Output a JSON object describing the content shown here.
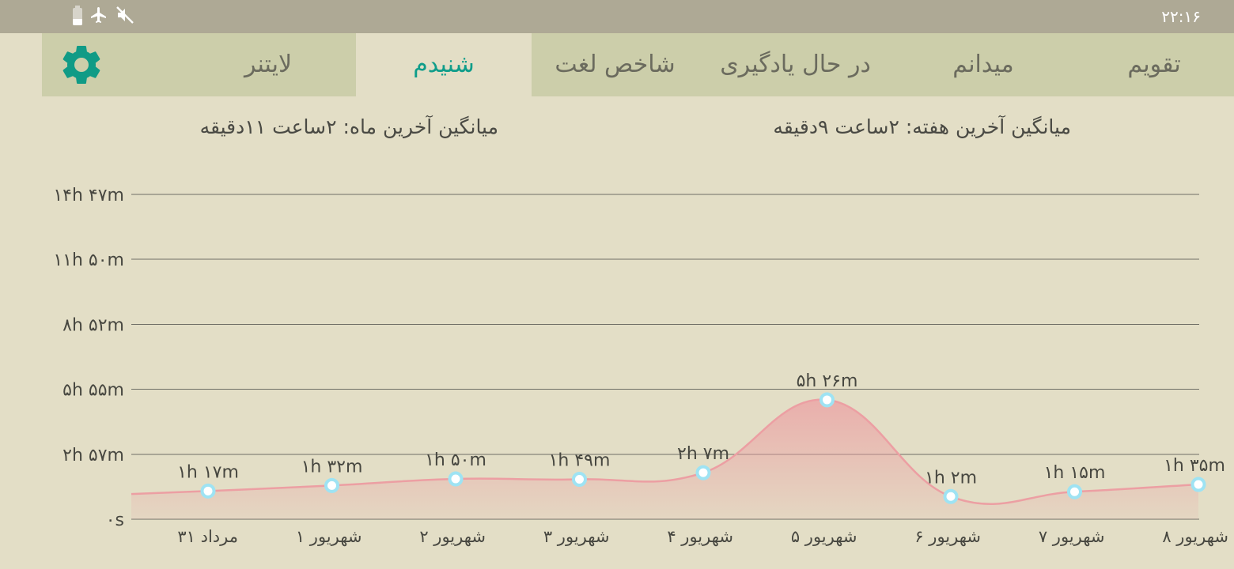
{
  "status_bar": {
    "time": "۲۲:۱۶",
    "icons": [
      "battery-icon",
      "airplane-mode-icon",
      "sound-muted-icon"
    ]
  },
  "tabs": [
    {
      "label": "تقویم",
      "active": false
    },
    {
      "label": "میدانم",
      "active": false
    },
    {
      "label": "در حال یادگیری",
      "active": false
    },
    {
      "label": "شاخص لغت",
      "active": false
    },
    {
      "label": "شنیدم",
      "active": true
    },
    {
      "label": "لایتنر",
      "active": false
    }
  ],
  "summary": {
    "week_avg": "میانگین آخرین هفته: ۲ساعت  ۹دقیقه",
    "month_avg": "میانگین آخرین ماه: ۲ساعت  ۱۱دقیقه"
  },
  "colors": {
    "accent": "#0f9d8a",
    "line": "#ec9fa3",
    "point": "#9ee3f3"
  },
  "chart_data": {
    "type": "area",
    "y_ticks": [
      "۰s",
      "۲h ۵۷m",
      "۵h ۵۵m",
      "۸h ۵۲m",
      "۱۱h ۵۰m",
      "۱۴h ۴۷m"
    ],
    "y_tick_minutes": [
      0,
      177,
      355,
      532,
      710,
      887
    ],
    "categories": [
      "۳۱ مرداد",
      "۱ شهریور",
      "۲ شهریور",
      "۳ شهریور",
      "۴ شهریور",
      "۵ شهریور",
      "۶ شهریور",
      "۷ شهریور",
      "۸ شهریور"
    ],
    "values_minutes": [
      77,
      92,
      110,
      109,
      127,
      326,
      62,
      75,
      95
    ],
    "value_labels": [
      "۱h ۱۷m",
      "۱h ۳۲m",
      "۱h ۵۰m",
      "۱h ۴۹m",
      "۲h ۷m",
      "۵h ۲۶m",
      "۱h ۲m",
      "۱h ۱۵m",
      "۱h ۳۵m"
    ],
    "ylim": [
      0,
      887
    ],
    "grid": true,
    "legend": "none"
  }
}
